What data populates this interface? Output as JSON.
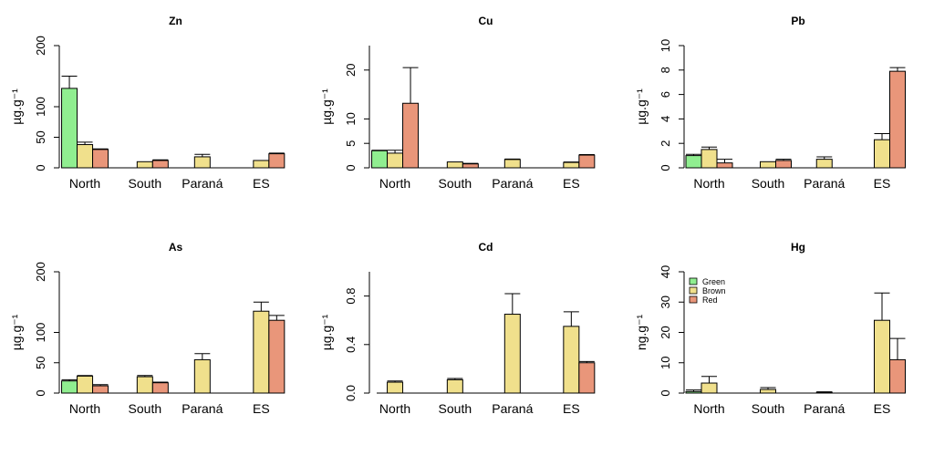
{
  "legend": {
    "items": [
      {
        "label": "Green",
        "color": "#90ee90"
      },
      {
        "label": "Brown",
        "color": "#f0e08c"
      },
      {
        "label": "Red",
        "color": "#e9967a"
      }
    ],
    "panel": "Hg",
    "placement": "top-left"
  },
  "chart_data": [
    {
      "type": "bar",
      "title": "Zn",
      "ylabel": "µg.g⁻¹",
      "ylim": [
        0,
        200
      ],
      "yticks": [
        0,
        50,
        100,
        200
      ],
      "categories": [
        "North",
        "South",
        "Paraná",
        "ES"
      ],
      "series": [
        {
          "name": "Green",
          "values": [
            130,
            null,
            null,
            null
          ],
          "errors": [
            150,
            null,
            null,
            null
          ]
        },
        {
          "name": "Brown",
          "values": [
            38,
            10,
            18,
            12
          ],
          "errors": [
            42,
            10,
            22,
            12
          ]
        },
        {
          "name": "Red",
          "values": [
            30,
            12,
            null,
            23
          ],
          "errors": [
            31,
            13,
            null,
            24
          ]
        }
      ]
    },
    {
      "type": "bar",
      "title": "Cu",
      "ylabel": "µg.g⁻¹",
      "ylim": [
        0,
        25
      ],
      "yticks": [
        0,
        5,
        10,
        20
      ],
      "categories": [
        "North",
        "South",
        "Paraná",
        "ES"
      ],
      "series": [
        {
          "name": "Green",
          "values": [
            3.5,
            null,
            null,
            null
          ],
          "errors": [
            3.6,
            null,
            null,
            null
          ]
        },
        {
          "name": "Brown",
          "values": [
            3.0,
            1.2,
            1.7,
            1.1
          ],
          "errors": [
            3.6,
            1.2,
            1.8,
            1.2
          ]
        },
        {
          "name": "Red",
          "values": [
            13.2,
            0.8,
            null,
            2.6
          ],
          "errors": [
            20.5,
            0.9,
            null,
            2.7
          ]
        }
      ]
    },
    {
      "type": "bar",
      "title": "Pb",
      "ylabel": "µg.g⁻¹",
      "ylim": [
        0,
        10
      ],
      "yticks": [
        0,
        2,
        4,
        6,
        8,
        10
      ],
      "categories": [
        "North",
        "South",
        "Paraná",
        "ES"
      ],
      "series": [
        {
          "name": "Green",
          "values": [
            1.0,
            null,
            null,
            null
          ],
          "errors": [
            1.1,
            null,
            null,
            null
          ]
        },
        {
          "name": "Brown",
          "values": [
            1.5,
            0.5,
            0.7,
            2.3
          ],
          "errors": [
            1.7,
            0.5,
            0.9,
            2.8
          ]
        },
        {
          "name": "Red",
          "values": [
            0.4,
            0.6,
            null,
            7.9
          ],
          "errors": [
            0.7,
            0.7,
            null,
            8.2
          ]
        }
      ]
    },
    {
      "type": "bar",
      "title": "As",
      "ylabel": "µg.g⁻¹",
      "ylim": [
        0,
        200
      ],
      "yticks": [
        0,
        50,
        100,
        200
      ],
      "categories": [
        "North",
        "South",
        "Paraná",
        "ES"
      ],
      "series": [
        {
          "name": "Green",
          "values": [
            20,
            null,
            null,
            null
          ],
          "errors": [
            22,
            null,
            null,
            null
          ]
        },
        {
          "name": "Brown",
          "values": [
            28,
            27,
            55,
            135
          ],
          "errors": [
            29,
            29,
            65,
            150
          ]
        },
        {
          "name": "Red",
          "values": [
            12,
            17,
            null,
            120
          ],
          "errors": [
            14,
            18,
            null,
            128
          ]
        }
      ]
    },
    {
      "type": "bar",
      "title": "Cd",
      "ylabel": "µg.g⁻¹",
      "ylim": [
        0,
        1.0
      ],
      "yticks": [
        0.0,
        0.4,
        0.8
      ],
      "categories": [
        "North",
        "South",
        "Paraná",
        "ES"
      ],
      "series": [
        {
          "name": "Green",
          "values": [
            null,
            null,
            null,
            null
          ],
          "errors": [
            null,
            null,
            null,
            null
          ]
        },
        {
          "name": "Brown",
          "values": [
            0.09,
            0.11,
            0.65,
            0.55
          ],
          "errors": [
            0.1,
            0.12,
            0.82,
            0.67
          ]
        },
        {
          "name": "Red",
          "values": [
            null,
            null,
            null,
            0.25
          ],
          "errors": [
            null,
            null,
            null,
            0.26
          ]
        }
      ]
    },
    {
      "type": "bar",
      "title": "Hg",
      "ylabel": "ng.g⁻¹",
      "ylim": [
        0,
        40
      ],
      "yticks": [
        0,
        10,
        20,
        30,
        40
      ],
      "categories": [
        "North",
        "South",
        "Paraná",
        "ES"
      ],
      "series": [
        {
          "name": "Green",
          "values": [
            0.5,
            null,
            null,
            null
          ],
          "errors": [
            1.0,
            null,
            null,
            null
          ]
        },
        {
          "name": "Brown",
          "values": [
            3.3,
            1.2,
            0.3,
            24
          ],
          "errors": [
            5.5,
            1.8,
            0.4,
            33
          ]
        },
        {
          "name": "Red",
          "values": [
            null,
            null,
            null,
            11
          ],
          "errors": [
            null,
            null,
            null,
            18
          ]
        }
      ]
    }
  ]
}
